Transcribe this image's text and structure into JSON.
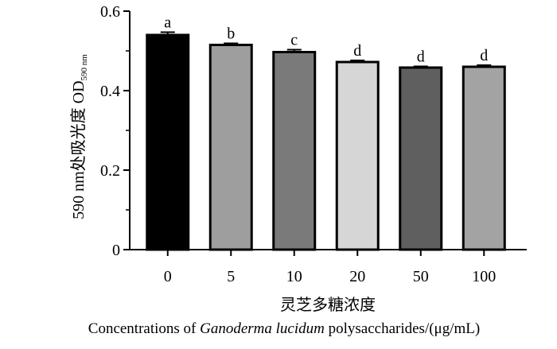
{
  "chart_data": {
    "type": "bar",
    "categories": [
      "0",
      "5",
      "10",
      "20",
      "50",
      "100"
    ],
    "values": [
      0.54,
      0.515,
      0.497,
      0.472,
      0.458,
      0.46
    ],
    "errors": [
      0.007,
      0.004,
      0.006,
      0.004,
      0.003,
      0.004
    ],
    "significance": [
      "a",
      "b",
      "c",
      "d",
      "d",
      "d"
    ],
    "colors": [
      "#000000",
      "#9e9e9e",
      "#7a7a7a",
      "#d6d6d6",
      "#5f5f5f",
      "#a3a3a3"
    ],
    "ylim": [
      0,
      0.6
    ],
    "yticks": [
      "0",
      "0.2",
      "0.4",
      "0.6"
    ],
    "ylabel": {
      "main": "590 nm处吸光度 OD",
      "subscript": "590 nm"
    },
    "xlabel": {
      "chinese": "灵芝多糖浓度",
      "english_prefix": "Concentrations of ",
      "english_italic": "Ganoderma lucidum",
      "english_suffix": " polysaccharides/(μg/mL)"
    },
    "grid": false
  }
}
